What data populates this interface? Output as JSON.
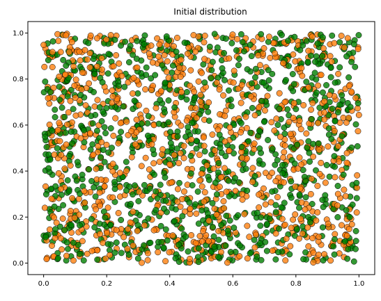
{
  "chart_data": {
    "type": "scatter",
    "title": "Initial distribution",
    "xlabel": "",
    "ylabel": "",
    "xlim": [
      -0.05,
      1.05
    ],
    "ylim": [
      -0.05,
      1.05
    ],
    "x_ticks": [
      0.0,
      0.2,
      0.4,
      0.6,
      0.8,
      1.0
    ],
    "y_ticks": [
      0.0,
      0.2,
      0.4,
      0.6,
      0.8,
      1.0
    ],
    "x_tick_labels": [
      "0.0",
      "0.2",
      "0.4",
      "0.6",
      "0.8",
      "1.0"
    ],
    "y_tick_labels": [
      "0.0",
      "0.2",
      "0.4",
      "0.6",
      "0.8",
      "1.0"
    ],
    "grid": false,
    "legend": "none",
    "series": [
      {
        "color": "#ff7f0e",
        "edgecolor": "#000000",
        "alpha": 0.8,
        "count": 1000,
        "distribution": "uniform",
        "range": [
          0,
          1
        ]
      },
      {
        "color": "#008000",
        "edgecolor": "#000000",
        "alpha": 0.8,
        "count": 1000,
        "distribution": "uniform",
        "range": [
          0,
          1
        ]
      }
    ]
  }
}
